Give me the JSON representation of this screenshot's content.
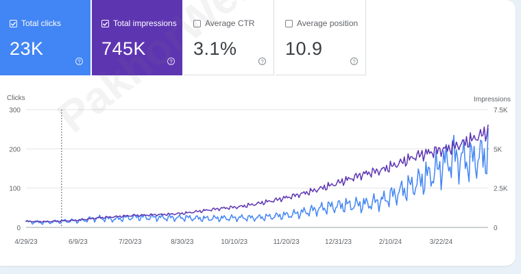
{
  "metrics": [
    {
      "label": "Total clicks",
      "value": "23K",
      "checked": true
    },
    {
      "label": "Total impressions",
      "value": "745K",
      "checked": true
    },
    {
      "label": "Average CTR",
      "value": "3.1%",
      "checked": false
    },
    {
      "label": "Average position",
      "value": "10.9",
      "checked": false
    }
  ],
  "help_glyph": "?",
  "watermark": "PakhorWeb.ir",
  "chart_data": {
    "type": "line",
    "left_axis": {
      "label": "Clicks",
      "range": [
        0,
        300
      ],
      "ticks": [
        "0",
        "100",
        "200",
        "300"
      ]
    },
    "right_axis": {
      "label": "Impressions",
      "range": [
        0,
        7500
      ],
      "ticks": [
        "0",
        "2.5K",
        "5K",
        "7.5K"
      ]
    },
    "x_ticks": [
      "4/29/23",
      "6/9/23",
      "7/20/23",
      "8/30/23",
      "10/10/23",
      "11/20/23",
      "12/31/23",
      "2/10/24",
      "3/22/24"
    ],
    "x_tick_day_index": [
      0,
      41,
      82,
      123,
      164,
      205,
      246,
      287,
      327
    ],
    "x_day_count": 364,
    "gridlines": true,
    "marker_day_index": 28,
    "series": [
      {
        "name": "Clicks",
        "axis": "left",
        "color": "#4285f4",
        "x": [
          0,
          14,
          28,
          42,
          56,
          70,
          84,
          98,
          112,
          126,
          140,
          154,
          168,
          182,
          196,
          210,
          224,
          238,
          252,
          266,
          280,
          294,
          308,
          322,
          336,
          350,
          364
        ],
        "values": [
          15,
          13,
          17,
          18,
          25,
          22,
          28,
          27,
          26,
          26,
          24,
          25,
          26,
          26,
          30,
          35,
          45,
          55,
          60,
          62,
          72,
          95,
          120,
          150,
          190,
          180,
          200
        ]
      },
      {
        "name": "Impressions",
        "axis": "right",
        "color": "#5e35b1",
        "x": [
          0,
          14,
          28,
          42,
          56,
          70,
          84,
          98,
          112,
          126,
          140,
          154,
          168,
          182,
          196,
          210,
          224,
          238,
          252,
          266,
          280,
          294,
          308,
          322,
          336,
          350,
          364
        ],
        "values": [
          400,
          380,
          420,
          480,
          620,
          700,
          780,
          820,
          860,
          940,
          1100,
          1250,
          1350,
          1550,
          1780,
          2050,
          2350,
          2700,
          3100,
          3500,
          3750,
          4200,
          4700,
          5000,
          5250,
          5700,
          6300
        ]
      }
    ]
  }
}
